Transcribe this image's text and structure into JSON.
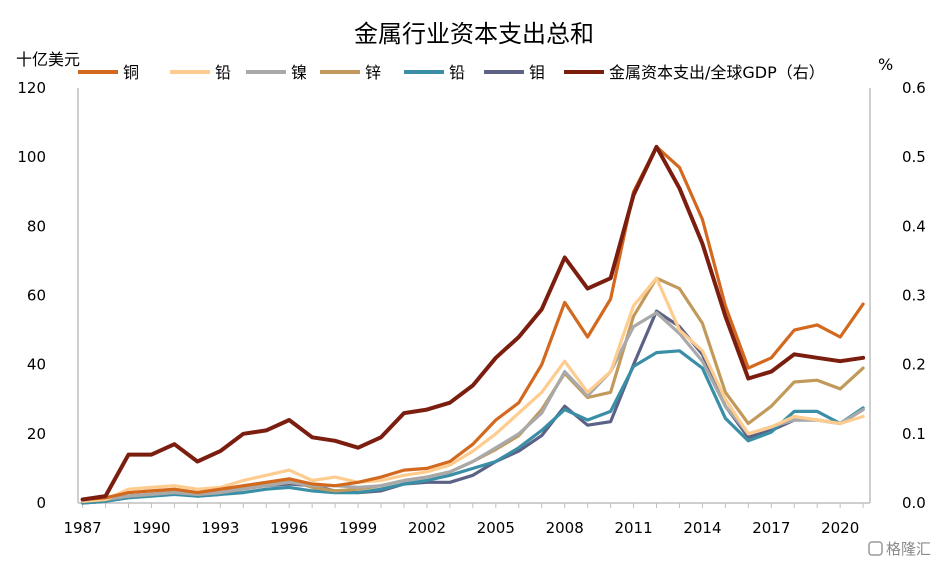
{
  "chart_data": {
    "type": "line",
    "title": "金属行业资本支出总和",
    "left_unit": "十亿美元",
    "right_unit": "%",
    "x": [
      1987,
      1988,
      1989,
      1990,
      1991,
      1992,
      1993,
      1994,
      1995,
      1996,
      1997,
      1998,
      1999,
      2000,
      2001,
      2002,
      2003,
      2004,
      2005,
      2006,
      2007,
      2008,
      2009,
      2010,
      2011,
      2012,
      2013,
      2014,
      2015,
      2016,
      2017,
      2018,
      2019,
      2020,
      2021
    ],
    "x_ticks": [
      "1987",
      "1990",
      "1993",
      "1996",
      "1999",
      "2002",
      "2005",
      "2008",
      "2011",
      "2014",
      "2017",
      "2020"
    ],
    "x_tick_values": [
      1987,
      1990,
      1993,
      1996,
      1999,
      2002,
      2005,
      2008,
      2011,
      2014,
      2017,
      2020
    ],
    "ylim_left": [
      0,
      120
    ],
    "ylim_right": [
      0,
      0.6
    ],
    "y_ticks_left": [
      "0",
      "20",
      "40",
      "60",
      "80",
      "100",
      "120"
    ],
    "y_ticks_left_values": [
      0,
      20,
      40,
      60,
      80,
      100,
      120
    ],
    "y_ticks_right": [
      "0.0",
      "0.1",
      "0.2",
      "0.3",
      "0.4",
      "0.5",
      "0.6"
    ],
    "y_ticks_right_values": [
      0,
      0.1,
      0.2,
      0.3,
      0.4,
      0.5,
      0.6
    ],
    "grid": false,
    "legend_position": "top",
    "series": [
      {
        "name": "铜",
        "color": "#D2691E",
        "axis": "left",
        "values": [
          1,
          1.5,
          3,
          3.5,
          4,
          3,
          4,
          5,
          6,
          7,
          5.5,
          5,
          6,
          7.5,
          9.5,
          10,
          12,
          17,
          24,
          29,
          40,
          58,
          48,
          59,
          90,
          103,
          97,
          82,
          57,
          39,
          42,
          50,
          51.5,
          48,
          57.5
        ]
      },
      {
        "name": "铅",
        "color": "#FFCC8F",
        "axis": "left",
        "values": [
          0.5,
          1,
          4,
          4.5,
          5,
          4,
          4.5,
          6.5,
          8,
          9.5,
          6.5,
          7.5,
          6,
          6.5,
          8,
          9,
          11,
          15,
          20,
          26,
          32,
          41,
          32,
          38,
          57,
          65,
          50,
          44,
          30,
          20,
          22,
          25,
          24,
          23,
          25
        ]
      },
      {
        "name": "镍",
        "color": "#A9A9A9",
        "axis": "left",
        "values": [
          0.5,
          1,
          2,
          2.5,
          3,
          2.5,
          3,
          4,
          5,
          6,
          5,
          5,
          4.5,
          5,
          6.5,
          7.5,
          9,
          12,
          16,
          20,
          26,
          38,
          31,
          38,
          51,
          55,
          49,
          41,
          28,
          20,
          22,
          24,
          24,
          23,
          27
        ]
      },
      {
        "name": "锌",
        "color": "#C19A5B",
        "axis": "left",
        "values": [
          0.5,
          1,
          2,
          2.5,
          3.5,
          2.5,
          3,
          4.5,
          5.5,
          6.5,
          4.5,
          3.5,
          4,
          5,
          6.5,
          7.5,
          9,
          12,
          15.5,
          19.5,
          27,
          37.5,
          30.5,
          32,
          54,
          65,
          62,
          52,
          32,
          23,
          28,
          35,
          35.5,
          33,
          39
        ]
      },
      {
        "name": "铅",
        "color": "#3A8FA6",
        "axis": "left",
        "values": [
          0,
          0.5,
          1.5,
          2,
          2.5,
          2,
          2.5,
          3,
          4,
          4.5,
          3.5,
          3,
          3,
          4,
          5.5,
          6.5,
          8,
          10,
          12,
          16,
          21,
          27,
          24,
          26.5,
          39.5,
          43.5,
          44,
          39,
          24.5,
          18,
          20.5,
          26.5,
          26.5,
          23,
          27.5
        ]
      },
      {
        "name": "钼",
        "color": "#5B6286",
        "axis": "left",
        "values": [
          0,
          0.5,
          2,
          2.5,
          3,
          2,
          2.5,
          4.5,
          5,
          5.5,
          5,
          3.5,
          3,
          3.5,
          5.5,
          6,
          6,
          8,
          12,
          15,
          19.5,
          28,
          22.5,
          23.5,
          40,
          55.5,
          51,
          43,
          28,
          19,
          21,
          24,
          24,
          23,
          27
        ]
      },
      {
        "name": "金属资本支出/全球GDP（右）",
        "color": "#7B1E10",
        "axis": "right",
        "values": [
          0.005,
          0.01,
          0.07,
          0.07,
          0.085,
          0.06,
          0.075,
          0.1,
          0.105,
          0.12,
          0.095,
          0.09,
          0.08,
          0.095,
          0.13,
          0.135,
          0.145,
          0.17,
          0.21,
          0.24,
          0.28,
          0.355,
          0.31,
          0.325,
          0.445,
          0.515,
          0.455,
          0.375,
          0.27,
          0.18,
          0.19,
          0.215,
          0.21,
          0.205,
          0.21
        ]
      }
    ]
  },
  "watermark": {
    "text": "格隆汇"
  }
}
